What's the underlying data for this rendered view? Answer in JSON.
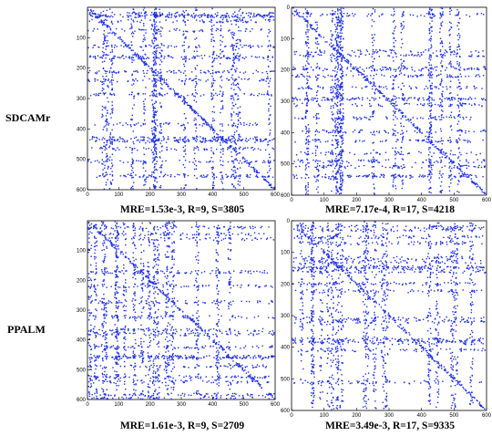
{
  "rows": [
    "SDCAMr",
    "PPALM"
  ],
  "dot_color": "#1f2fe0",
  "chart_data": [
    {
      "type": "scatter",
      "description_kind": "sparsity-pattern",
      "caption": "MRE=1.53e-3, R=9, S=3805",
      "row": "SDCAMr",
      "xlim": [
        0,
        600
      ],
      "ylim": [
        0,
        600
      ],
      "xticks": [
        0,
        100,
        200,
        300,
        400,
        500,
        600
      ],
      "yticks": [
        100,
        200,
        300,
        400,
        500,
        600
      ],
      "nonzeros": 3805,
      "seed": 11
    },
    {
      "type": "scatter",
      "description_kind": "sparsity-pattern",
      "caption": "MRE=7.17e-4, R=17, S=4218",
      "row": "SDCAMr",
      "xlim": [
        0,
        600
      ],
      "ylim": [
        0,
        600
      ],
      "xticks": [
        0,
        100,
        200,
        300,
        400,
        500,
        600
      ],
      "yticks": [
        0,
        100,
        200,
        300,
        400,
        500,
        600
      ],
      "nonzeros": 4218,
      "seed": 23
    },
    {
      "type": "scatter",
      "description_kind": "sparsity-pattern",
      "caption": "MRE=1.61e-3, R=9, S=2709",
      "row": "PPALM",
      "xlim": [
        0,
        600
      ],
      "ylim": [
        0,
        600
      ],
      "xticks": [
        0,
        100,
        200,
        300,
        400,
        500,
        600
      ],
      "yticks": [
        100,
        200,
        300,
        400,
        500,
        600
      ],
      "nonzeros": 2709,
      "seed": 37
    },
    {
      "type": "scatter",
      "description_kind": "sparsity-pattern",
      "caption": "MRE=3.49e-3, R=17, S=9335",
      "row": "PPALM",
      "xlim": [
        0,
        600
      ],
      "ylim": [
        0,
        600
      ],
      "xticks": [
        0,
        100,
        200,
        300,
        400,
        500,
        600
      ],
      "yticks": [
        0,
        100,
        200,
        300,
        400,
        500,
        600
      ],
      "nonzeros": 9335,
      "seed": 53
    }
  ]
}
